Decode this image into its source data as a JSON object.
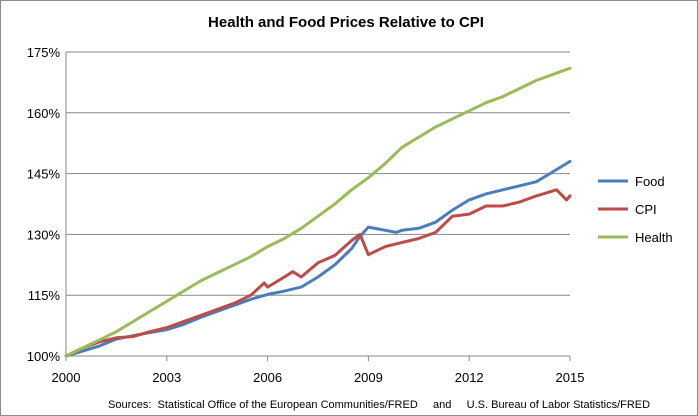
{
  "chart_data": {
    "type": "line",
    "title": "Health and Food Prices Relative to CPI",
    "xlabel": "",
    "ylabel": "",
    "xlim": [
      2000,
      2015
    ],
    "ylim": [
      100,
      175
    ],
    "x_ticks": [
      "2000",
      "2003",
      "2006",
      "2009",
      "2012",
      "2015"
    ],
    "y_ticks": [
      "100%",
      "115%",
      "130%",
      "145%",
      "160%",
      "175%"
    ],
    "grid": "horizontal",
    "legend_position": "right",
    "series": [
      {
        "name": "Food",
        "color": "#4a7ebb",
        "points": [
          [
            2000,
            100
          ],
          [
            2000.5,
            101.2
          ],
          [
            2001,
            102.5
          ],
          [
            2001.5,
            104.2
          ],
          [
            2002,
            105
          ],
          [
            2002.5,
            105.8
          ],
          [
            2003,
            106.5
          ],
          [
            2003.5,
            107.8
          ],
          [
            2004,
            109.5
          ],
          [
            2004.5,
            111
          ],
          [
            2005,
            112.5
          ],
          [
            2005.5,
            114
          ],
          [
            2006,
            115.2
          ],
          [
            2006.5,
            116
          ],
          [
            2007,
            117
          ],
          [
            2007.5,
            119.5
          ],
          [
            2008,
            122.5
          ],
          [
            2008.5,
            126.5
          ],
          [
            2008.75,
            129.5
          ],
          [
            2009,
            131.8
          ],
          [
            2009.5,
            131
          ],
          [
            2009.83,
            130.5
          ],
          [
            2010,
            131
          ],
          [
            2010.5,
            131.5
          ],
          [
            2011,
            133
          ],
          [
            2011.5,
            136
          ],
          [
            2012,
            138.5
          ],
          [
            2012.5,
            140
          ],
          [
            2013,
            141
          ],
          [
            2013.5,
            142
          ],
          [
            2014,
            143
          ],
          [
            2014.5,
            145.5
          ],
          [
            2015,
            148
          ]
        ]
      },
      {
        "name": "CPI",
        "color": "#be4b48",
        "points": [
          [
            2000,
            100
          ],
          [
            2000.5,
            102
          ],
          [
            2001,
            103.5
          ],
          [
            2001.5,
            104.5
          ],
          [
            2002,
            104.8
          ],
          [
            2002.5,
            106
          ],
          [
            2003,
            107
          ],
          [
            2003.5,
            108.5
          ],
          [
            2004,
            110
          ],
          [
            2004.5,
            111.5
          ],
          [
            2005,
            113
          ],
          [
            2005.5,
            115
          ],
          [
            2005.9,
            118
          ],
          [
            2006,
            117
          ],
          [
            2006.5,
            119.5
          ],
          [
            2006.75,
            120.8
          ],
          [
            2007,
            119.5
          ],
          [
            2007.5,
            123
          ],
          [
            2008,
            124.8
          ],
          [
            2008.5,
            128.5
          ],
          [
            2008.75,
            130
          ],
          [
            2009,
            125
          ],
          [
            2009.5,
            127
          ],
          [
            2010,
            128
          ],
          [
            2010.5,
            129
          ],
          [
            2011,
            130.5
          ],
          [
            2011.5,
            134.5
          ],
          [
            2012,
            135
          ],
          [
            2012.5,
            137
          ],
          [
            2013,
            137
          ],
          [
            2013.5,
            138
          ],
          [
            2014,
            139.5
          ],
          [
            2014.6,
            141
          ],
          [
            2014.9,
            138.5
          ],
          [
            2015,
            139.5
          ]
        ]
      },
      {
        "name": "Health",
        "color": "#9bbb59",
        "points": [
          [
            2000,
            100
          ],
          [
            2000.5,
            102
          ],
          [
            2001,
            104
          ],
          [
            2001.5,
            106
          ],
          [
            2002,
            108.5
          ],
          [
            2002.5,
            111
          ],
          [
            2003,
            113.5
          ],
          [
            2003.5,
            116
          ],
          [
            2004,
            118.5
          ],
          [
            2004.5,
            120.5
          ],
          [
            2005,
            122.5
          ],
          [
            2005.5,
            124.5
          ],
          [
            2006,
            127
          ],
          [
            2006.5,
            129
          ],
          [
            2007,
            131.5
          ],
          [
            2007.5,
            134.5
          ],
          [
            2008,
            137.5
          ],
          [
            2008.5,
            141
          ],
          [
            2009,
            144
          ],
          [
            2009.5,
            147.5
          ],
          [
            2010,
            151.5
          ],
          [
            2010.5,
            154
          ],
          [
            2011,
            156.5
          ],
          [
            2011.5,
            158.5
          ],
          [
            2012,
            160.5
          ],
          [
            2012.5,
            162.5
          ],
          [
            2013,
            164
          ],
          [
            2013.5,
            166
          ],
          [
            2014,
            168
          ],
          [
            2014.5,
            169.5
          ],
          [
            2015,
            171
          ]
        ]
      }
    ],
    "source_text": "Sources:  Statistical Office of the European Communities/FRED     and     U.S. Bureau of Labor Statistics/FRED"
  }
}
